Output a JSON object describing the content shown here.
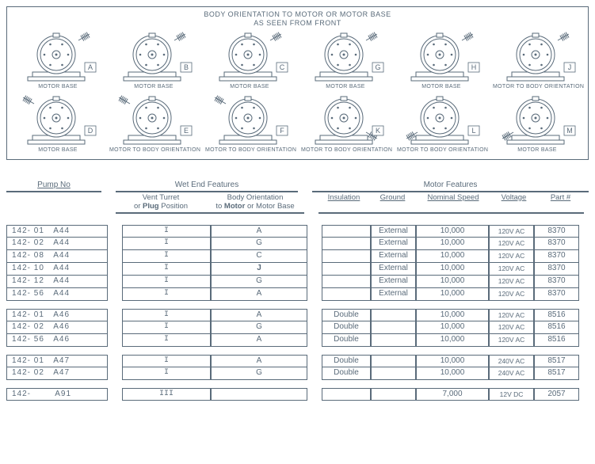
{
  "diagram": {
    "title_line1": "BODY ORIENTATION TO MOTOR OR MOTOR BASE",
    "title_line2": "AS SEEN FROM FRONT",
    "caption_motor_base": "MOTOR BASE",
    "caption_mtbo": "MOTOR TO BODY ORIENTATION",
    "cells": [
      {
        "letter": "A",
        "port": "right-up",
        "caption": "MOTOR BASE"
      },
      {
        "letter": "B",
        "port": "right-up",
        "caption": "MOTOR BASE"
      },
      {
        "letter": "C",
        "port": "right-up",
        "caption": "MOTOR BASE"
      },
      {
        "letter": "G",
        "port": "right-up",
        "caption": "MOTOR BASE"
      },
      {
        "letter": "H",
        "port": "right-up",
        "caption": "MOTOR BASE"
      },
      {
        "letter": "J",
        "port": "right-up",
        "caption": "MOTOR TO BODY ORIENTATION"
      },
      {
        "letter": "D",
        "port": "left-up",
        "caption": "MOTOR BASE"
      },
      {
        "letter": "E",
        "port": "left-up",
        "caption": "MOTOR TO BODY ORIENTATION"
      },
      {
        "letter": "F",
        "port": "left-up",
        "caption": "MOTOR TO BODY ORIENTATION"
      },
      {
        "letter": "K",
        "port": "right-down",
        "caption": "MOTOR TO BODY ORIENTATION"
      },
      {
        "letter": "L",
        "port": "left-down",
        "caption": "MOTOR TO BODY ORIENTATION"
      },
      {
        "letter": "M",
        "port": "left-down",
        "caption": "MOTOR BASE"
      }
    ]
  },
  "table": {
    "hdr_pump": "Pump No",
    "hdr_wet": "Wet End Features",
    "hdr_motor": "Motor Features",
    "sub_vent1": "Vent Turret",
    "sub_vent2_a": "or ",
    "sub_vent2_b": "Plug",
    "sub_vent2_c": " Position",
    "sub_body1": "Body Orientation",
    "sub_body2_a": "to ",
    "sub_body2_b": "Motor",
    "sub_body2_c": " or Motor Base",
    "sub_ins": "Insulation",
    "sub_gnd": "Ground",
    "sub_ns": "Nominal Speed",
    "sub_v": "Voltage",
    "sub_part": "Part #",
    "groups": [
      {
        "rows": [
          {
            "pn": "142- 01   A44",
            "vt": "I",
            "bo": "A",
            "bo_bold": false,
            "ins": "",
            "gnd": "External",
            "ns": "10,000",
            "v": "120V AC",
            "part": "8370"
          },
          {
            "pn": "142- 02   A44",
            "vt": "I",
            "bo": "G",
            "bo_bold": false,
            "ins": "",
            "gnd": "External",
            "ns": "10,000",
            "v": "120V AC",
            "part": "8370"
          },
          {
            "pn": "142- 08   A44",
            "vt": "I",
            "bo": "C",
            "bo_bold": false,
            "ins": "",
            "gnd": "External",
            "ns": "10,000",
            "v": "120V AC",
            "part": "8370"
          },
          {
            "pn": "142- 10   A44",
            "vt": "I",
            "bo": "J",
            "bo_bold": true,
            "ins": "",
            "gnd": "External",
            "ns": "10,000",
            "v": "120V AC",
            "part": "8370"
          },
          {
            "pn": "142- 12   A44",
            "vt": "I",
            "bo": "G",
            "bo_bold": false,
            "ins": "",
            "gnd": "External",
            "ns": "10,000",
            "v": "120V AC",
            "part": "8370"
          },
          {
            "pn": "142- 56   A44",
            "vt": "I",
            "bo": "A",
            "bo_bold": false,
            "ins": "",
            "gnd": "External",
            "ns": "10,000",
            "v": "120V AC",
            "part": "8370"
          }
        ]
      },
      {
        "rows": [
          {
            "pn": "142- 01   A46",
            "vt": "I",
            "bo": "A",
            "bo_bold": false,
            "ins": "Double",
            "gnd": "",
            "ns": "10,000",
            "v": "120V AC",
            "part": "8516"
          },
          {
            "pn": "142- 02   A46",
            "vt": "I",
            "bo": "G",
            "bo_bold": false,
            "ins": "Double",
            "gnd": "",
            "ns": "10,000",
            "v": "120V AC",
            "part": "8516"
          },
          {
            "pn": "142- 56   A46",
            "vt": "I",
            "bo": "A",
            "bo_bold": false,
            "ins": "Double",
            "gnd": "",
            "ns": "10,000",
            "v": "120V AC",
            "part": "8516"
          }
        ]
      },
      {
        "rows": [
          {
            "pn": "142- 01   A47",
            "vt": "I",
            "bo": "A",
            "bo_bold": false,
            "ins": "Double",
            "gnd": "",
            "ns": "10,000",
            "v": "240V AC",
            "part": "8517"
          },
          {
            "pn": "142- 02   A47",
            "vt": "I",
            "bo": "G",
            "bo_bold": false,
            "ins": "Double",
            "gnd": "",
            "ns": "10,000",
            "v": "240V AC",
            "part": "8517"
          }
        ]
      },
      {
        "rows": [
          {
            "pn": "142-        A91",
            "vt": "III",
            "bo": "",
            "bo_bold": false,
            "ins": "",
            "gnd": "",
            "ns": "7,000",
            "v": "12V DC",
            "part": "2057"
          }
        ]
      }
    ]
  },
  "colors": {
    "stroke": "#5a6b7a",
    "bg": "#ffffff"
  }
}
